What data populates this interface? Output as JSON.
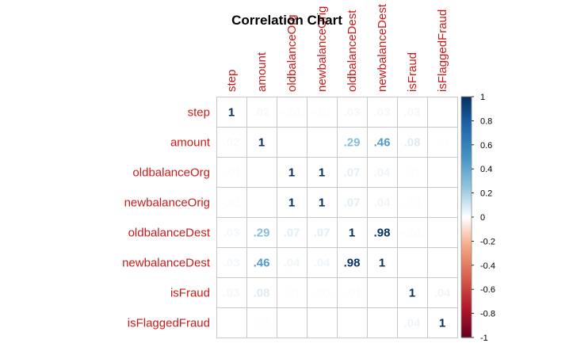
{
  "chart_data": {
    "type": "heatmap",
    "title": "Correlation Chart",
    "variables": [
      "step",
      "amount",
      "oldbalanceOrg",
      "newbalanceOrig",
      "oldbalanceDest",
      "newbalanceDest",
      "isFraud",
      "isFlaggedFraud"
    ],
    "matrix": [
      [
        1,
        0.02,
        -0.01,
        -0.01,
        0.03,
        0.03,
        0.03,
        0
      ],
      [
        0.02,
        1,
        0,
        0,
        0.29,
        0.46,
        0.08,
        0.01
      ],
      [
        -0.01,
        0,
        1,
        1,
        0.07,
        0.04,
        0.01,
        0
      ],
      [
        -0.01,
        0,
        1,
        1,
        0.07,
        0.04,
        -0.01,
        0
      ],
      [
        0.03,
        0.29,
        0.07,
        0.07,
        1,
        0.98,
        -0.01,
        0
      ],
      [
        0.03,
        0.46,
        0.04,
        0.04,
        0.98,
        1,
        0,
        0
      ],
      [
        0.03,
        0.08,
        0.01,
        -0.01,
        -0.01,
        0,
        1,
        0.04
      ],
      [
        0,
        0.01,
        0,
        0,
        0,
        0,
        0.04,
        1
      ]
    ],
    "legend": {
      "range": [
        -1,
        1
      ],
      "ticks": [
        "1",
        "0.8",
        "0.6",
        "0.4",
        "0.2",
        "0",
        "-0.2",
        "-0.4",
        "-0.6",
        "-0.8",
        "-1"
      ]
    },
    "colors": {
      "label": "#cc1a1a",
      "grid": "#c8c8c8",
      "negative_end": "#67001f",
      "positive_end": "#053061"
    }
  }
}
